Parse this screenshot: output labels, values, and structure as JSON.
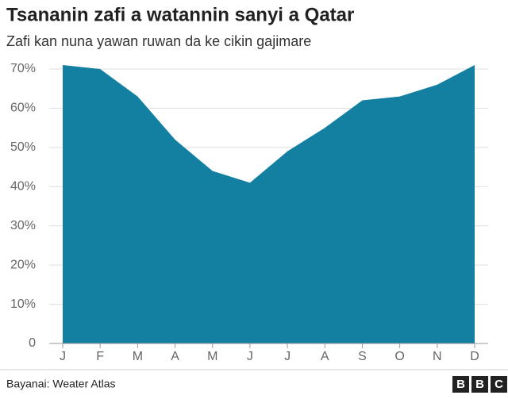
{
  "chart_data": {
    "type": "area",
    "title": "Tsananin zafi a watannin sanyi a Qatar",
    "subtitle": "Zafi kan nuna yawan ruwan da ke cikin gajimare",
    "source": "Bayanai: Weater Atlas",
    "logo": [
      "B",
      "B",
      "C"
    ],
    "categories": [
      "J",
      "F",
      "M",
      "A",
      "M",
      "J",
      "J",
      "A",
      "S",
      "O",
      "N",
      "D"
    ],
    "values": [
      71,
      70,
      63,
      52,
      44,
      41,
      49,
      55,
      62,
      63,
      66,
      71
    ],
    "color": "#1380a1",
    "ylim": [
      0,
      70
    ],
    "yticks": [
      0,
      {
        "value": 10,
        "label": "10%"
      },
      {
        "value": 20,
        "label": "20%"
      },
      {
        "value": 30,
        "label": "30%"
      },
      {
        "value": 40,
        "label": "40%"
      },
      {
        "value": 50,
        "label": "50%"
      },
      {
        "value": 60,
        "label": "60%"
      },
      {
        "value": 70,
        "label": "70%"
      }
    ],
    "grid": true
  }
}
